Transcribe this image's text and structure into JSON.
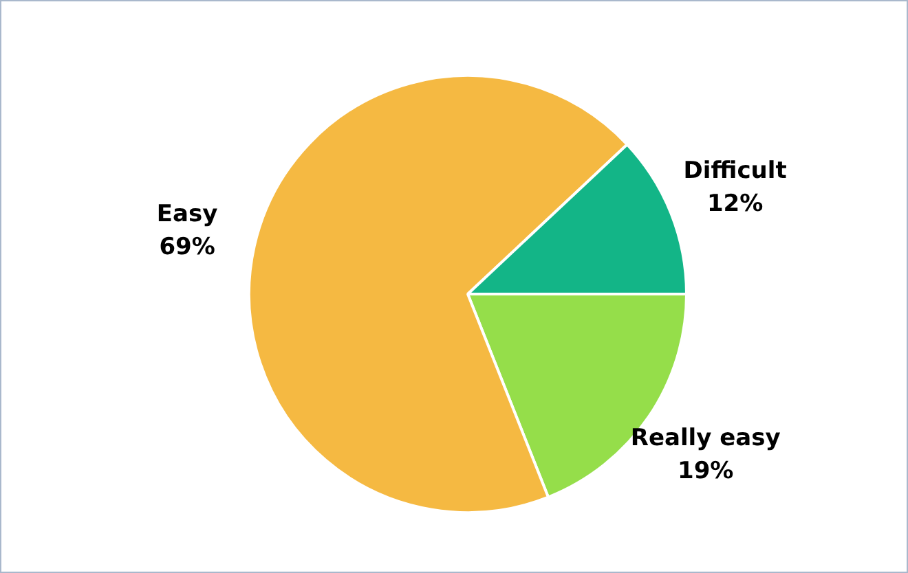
{
  "chart_data": {
    "type": "pie",
    "categories": [
      "Really easy",
      "Easy",
      "Difficult"
    ],
    "values": [
      19,
      69,
      12
    ],
    "colors": [
      "#95de4a",
      "#f5b942",
      "#13b587"
    ],
    "value_labels": [
      "19%",
      "69%",
      "12%"
    ],
    "legend": false
  }
}
